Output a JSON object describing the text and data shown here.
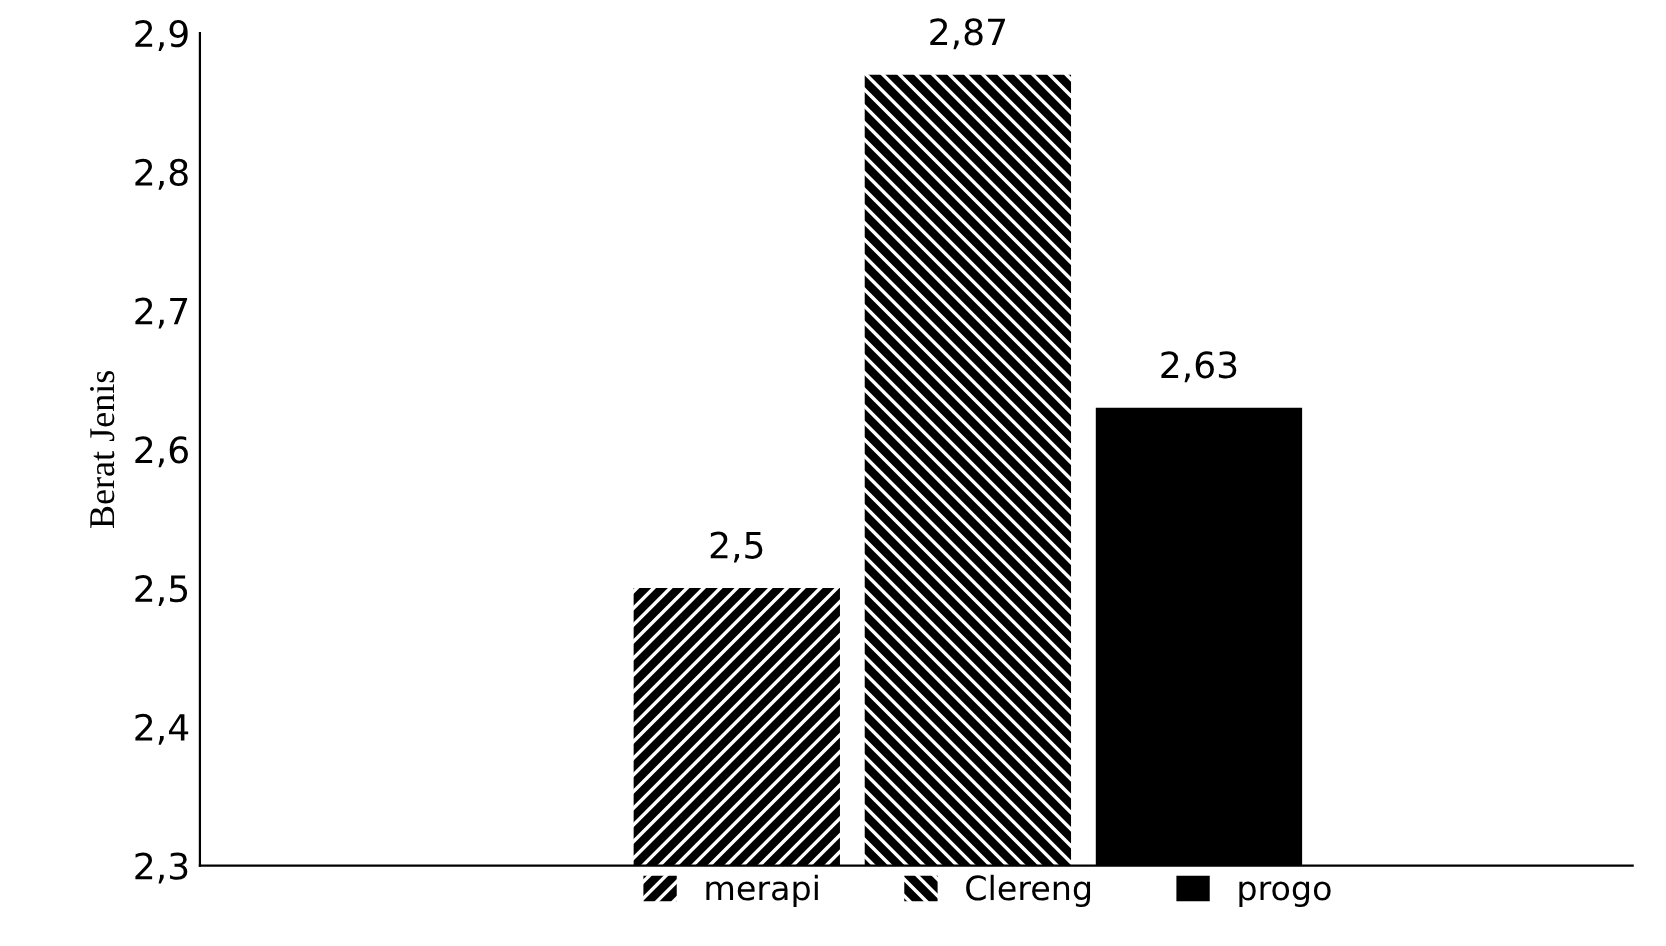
{
  "chart_data": {
    "type": "bar",
    "ylabel": "Berat Jenis",
    "categories": [
      null
    ],
    "series": [
      {
        "name": "merapi",
        "color": "#000000",
        "values": [
          2.5
        ],
        "value_labels": [
          "2,5"
        ]
      },
      {
        "name": "Clereng",
        "color": "#000000",
        "values": [
          2.87
        ],
        "value_labels": [
          "2,87"
        ]
      },
      {
        "name": "progo",
        "color": "#000000",
        "values": [
          2.63
        ],
        "value_labels": [
          "2,63"
        ]
      }
    ],
    "ylim": [
      2.3,
      2.9
    ],
    "yticks": [
      {
        "value": 2.3,
        "label": "2,3"
      },
      {
        "value": 2.4,
        "label": "2,4"
      },
      {
        "value": 2.5,
        "label": "2,5"
      },
      {
        "value": 2.6,
        "label": "2,6"
      },
      {
        "value": 2.7,
        "label": "2,7"
      },
      {
        "value": 2.8,
        "label": "2,8"
      },
      {
        "value": 2.9,
        "label": "2,9"
      }
    ],
    "grid": false,
    "legend": "bottom"
  }
}
